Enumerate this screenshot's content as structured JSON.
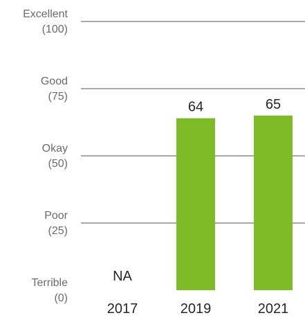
{
  "chart_data": {
    "type": "bar",
    "categories": [
      "2017",
      "2019",
      "2021"
    ],
    "values": [
      null,
      64,
      65
    ],
    "data_labels": [
      "NA",
      "64",
      "65"
    ],
    "ylim": [
      0,
      100
    ],
    "y_ticks": [
      {
        "value": 100,
        "name": "Excellent",
        "score": "(100)"
      },
      {
        "value": 75,
        "name": "Good",
        "score": "(75)"
      },
      {
        "value": 50,
        "name": "Okay",
        "score": "(50)"
      },
      {
        "value": 25,
        "name": "Poor",
        "score": "(25)"
      },
      {
        "value": 0,
        "name": "Terrible",
        "score": "(0)"
      }
    ],
    "grid": true,
    "bar_color": "#7fba27",
    "gridline_color": "#8c8c8c",
    "title": "",
    "xlabel": "",
    "ylabel": ""
  }
}
